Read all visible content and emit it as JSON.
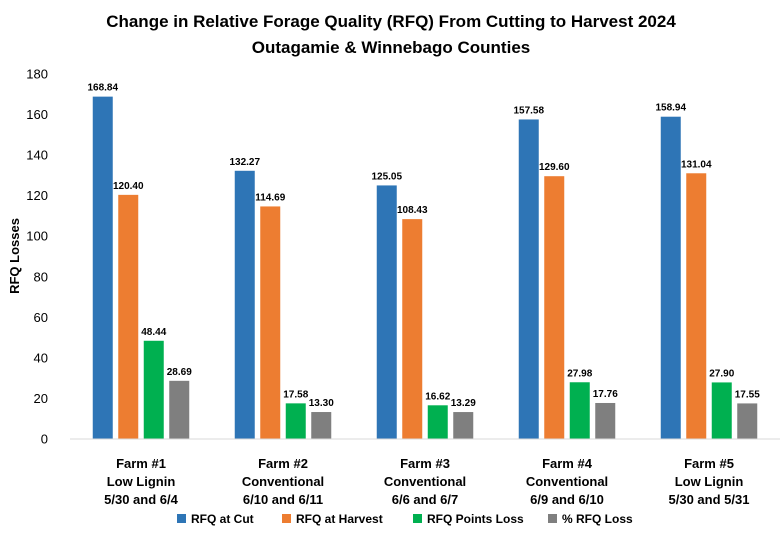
{
  "chart_data": {
    "type": "bar",
    "title": "Change in Relative Forage Quality (RFQ) From Cutting to Harvest 2024",
    "subtitle": "Outagamie & Winnebago Counties",
    "xlabel": "",
    "ylabel": "RFQ Losses",
    "ylim": [
      0,
      180
    ],
    "yticks": [
      0,
      20,
      40,
      60,
      80,
      100,
      120,
      140,
      160,
      180
    ],
    "grid": false,
    "legend_position": "bottom",
    "categories": [
      [
        "Farm #1",
        "Low Lignin",
        "5/30 and 6/4"
      ],
      [
        "Farm #2",
        "Conventional",
        "6/10 and 6/11"
      ],
      [
        "Farm #3",
        "Conventional",
        "6/6 and 6/7"
      ],
      [
        "Farm #4",
        "Conventional",
        "6/9 and 6/10"
      ],
      [
        "Farm #5",
        "Low Lignin",
        "5/30 and 5/31"
      ]
    ],
    "series": [
      {
        "name": "RFQ at Cut",
        "color": "#2E75B6",
        "values": [
          168.84,
          132.27,
          125.05,
          157.58,
          158.94
        ],
        "labels": [
          "168.84",
          "132.27",
          "125.05",
          "157.58",
          "158.94"
        ]
      },
      {
        "name": "RFQ at Harvest",
        "color": "#ED7D31",
        "values": [
          120.4,
          114.69,
          108.43,
          129.6,
          131.04
        ],
        "labels": [
          "120.40",
          "114.69",
          "108.43",
          "129.60",
          "131.04"
        ]
      },
      {
        "name": "RFQ Points Loss",
        "color": "#00B050",
        "values": [
          48.44,
          17.58,
          16.62,
          27.98,
          27.9
        ],
        "labels": [
          "48.44",
          "17.58",
          "16.62",
          "27.98",
          "27.90"
        ]
      },
      {
        "name": "% RFQ Loss",
        "color": "#7F7F7F",
        "values": [
          28.69,
          13.3,
          13.29,
          17.76,
          17.55
        ],
        "labels": [
          "28.69",
          "13.30",
          "13.29",
          "17.76",
          "17.55"
        ]
      }
    ]
  }
}
